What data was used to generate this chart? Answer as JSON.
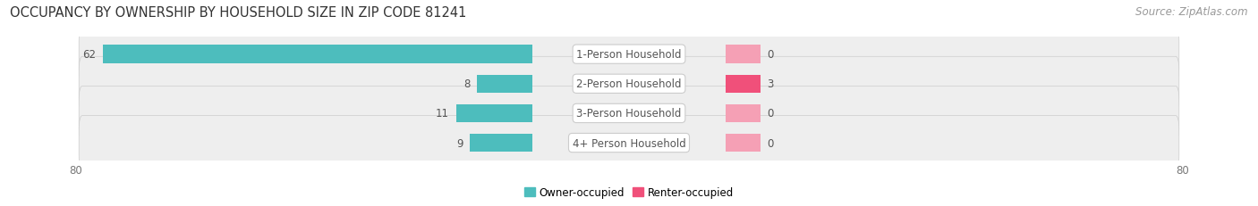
{
  "title": "OCCUPANCY BY OWNERSHIP BY HOUSEHOLD SIZE IN ZIP CODE 81241",
  "source": "Source: ZipAtlas.com",
  "categories": [
    "1-Person Household",
    "2-Person Household",
    "3-Person Household",
    "4+ Person Household"
  ],
  "owner_values": [
    62,
    8,
    11,
    9
  ],
  "renter_values": [
    0,
    3,
    0,
    0
  ],
  "owner_color": "#4dbdbd",
  "renter_color_nonzero": "#f0507a",
  "renter_color_zero": "#f5a0b5",
  "row_bg_color": "#eeeeee",
  "row_border_color": "#dddddd",
  "label_bg_color": "#ffffff",
  "label_text_color": "#555555",
  "value_text_color": "#555555",
  "xlim": [
    -80,
    80
  ],
  "x_axis_ticks": [
    -80,
    80
  ],
  "title_fontsize": 10.5,
  "source_fontsize": 8.5,
  "label_fontsize": 8.5,
  "value_fontsize": 8.5,
  "legend_fontsize": 8.5,
  "axis_tick_fontsize": 8.5,
  "bar_height": 0.62,
  "min_renter_bar": 5,
  "label_halfwidth": 14
}
